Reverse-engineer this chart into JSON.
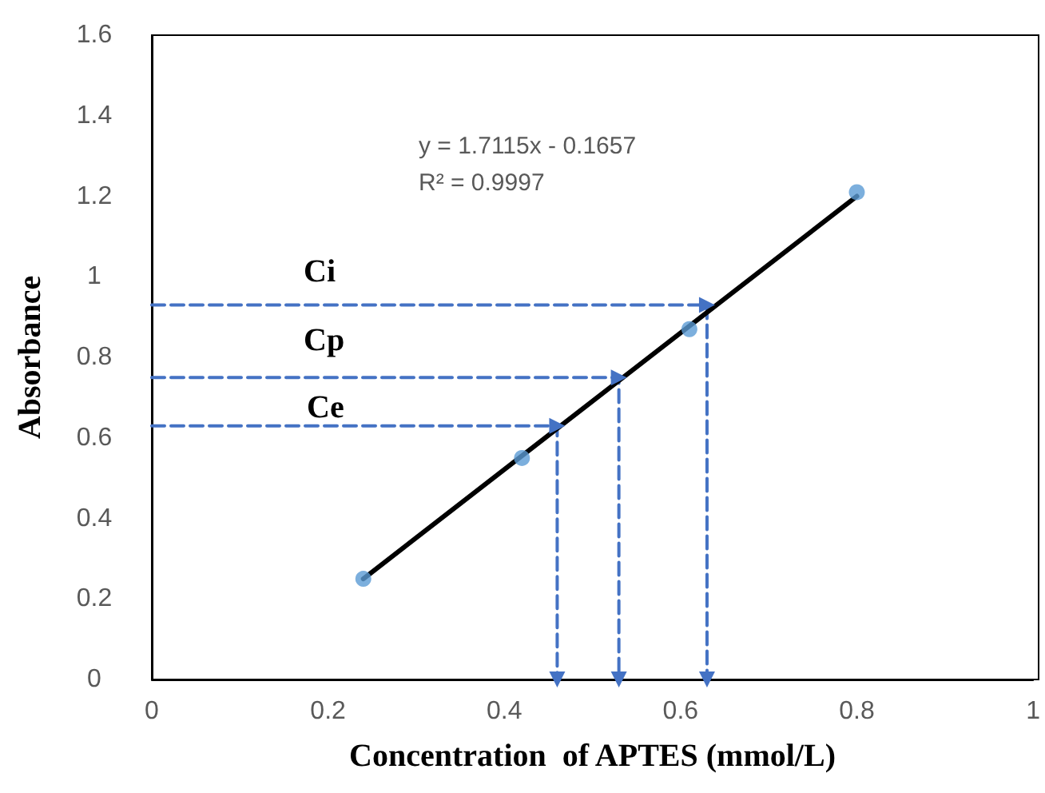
{
  "chart_data": {
    "type": "scatter",
    "xlabel": "Concentration  of APTES (mmol/L)",
    "ylabel": "Absorbance",
    "xlim": [
      0,
      1
    ],
    "xticks": [
      0,
      0.2,
      0.4,
      0.6,
      0.8,
      1
    ],
    "ylim": [
      0,
      1.6
    ],
    "yticks": [
      0,
      0.2,
      0.4,
      0.6,
      0.8,
      1,
      1.2,
      1.4,
      1.6
    ],
    "grid": false,
    "marker": "circle",
    "series": [
      {
        "type": "line",
        "color": "#4472c4",
        "line_style": "dashed",
        "marker": "triangle",
        "x": [
          0,
          0.63,
          0.63
        ],
        "values": [
          0.93,
          0.93,
          0
        ]
      },
      {
        "type": "line",
        "color": "#4472c4",
        "line_style": "dashed",
        "marker": "triangle",
        "x": [
          0,
          0.53,
          0.53
        ],
        "values": [
          0.75,
          0.75,
          0
        ]
      },
      {
        "type": "line",
        "color": "#4472c4",
        "line_style": "dashed",
        "marker": "triangle",
        "x": [
          0,
          0.46,
          0.46
        ],
        "values": [
          0.63,
          0.63,
          0
        ]
      },
      {
        "type": "line",
        "color": "#000000",
        "line_style": "solid",
        "marker": "none",
        "x": [
          0.24,
          0.8
        ],
        "values": [
          0.25,
          1.2
        ]
      },
      {
        "color": "#5b9bd5",
        "x": [
          0.24,
          0.42,
          0.61,
          0.8
        ],
        "values": [
          0.25,
          0.55,
          0.87,
          1.21
        ]
      }
    ],
    "annotations": [
      "y = 1.7115x - 0.1657",
      "R² = 0.9997",
      "Ci",
      "Cp",
      "Ce"
    ]
  }
}
